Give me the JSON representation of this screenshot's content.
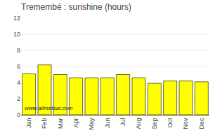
{
  "chart_data": {
    "type": "bar",
    "title": "Tremembé : sunshine (hours)",
    "categories": [
      "Jan",
      "Feb",
      "Mar",
      "Apr",
      "May",
      "Jun",
      "Jul",
      "Aug",
      "Sep",
      "Oct",
      "Nov",
      "Dec"
    ],
    "values": [
      5.1,
      6.2,
      5.0,
      4.6,
      4.6,
      4.6,
      5.0,
      4.6,
      3.9,
      4.2,
      4.2,
      4.1
    ],
    "color": "#ffff00",
    "ylim": [
      0,
      12
    ],
    "yticks": [
      0,
      2,
      4,
      6,
      8,
      10,
      12
    ],
    "grid": true,
    "annotations": [
      "www.allmetsat.com"
    ]
  }
}
